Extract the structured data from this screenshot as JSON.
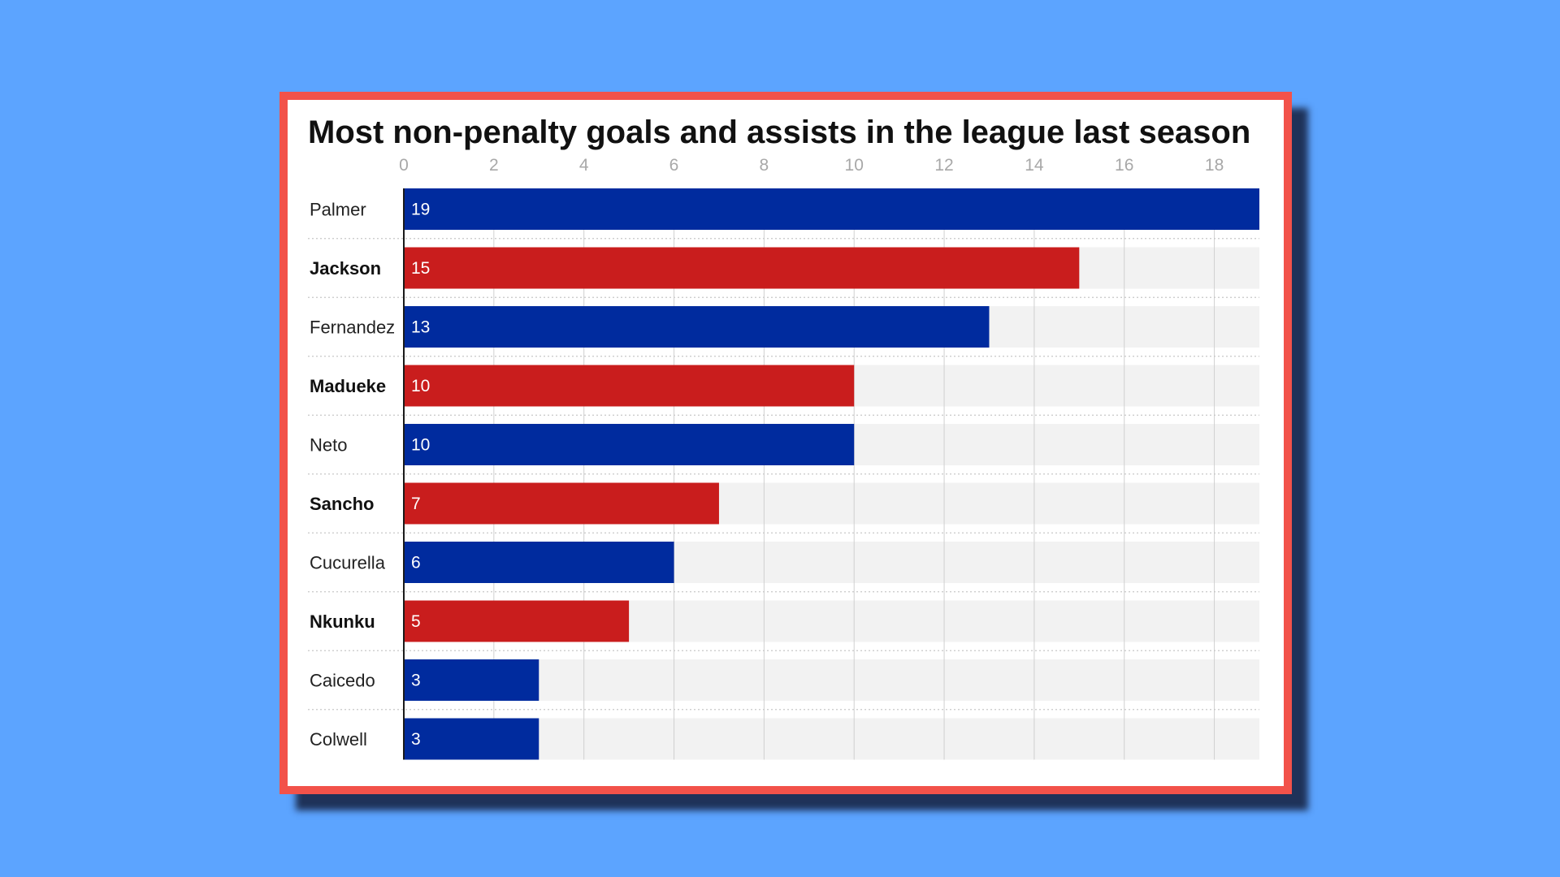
{
  "colors": {
    "background": "#5ca4ff",
    "card_border": "#f2524a",
    "blue_bar": "#002b9e",
    "red_bar": "#c91d1d",
    "track": "#f2f2f2",
    "gridline": "#d0d0d0"
  },
  "chart_data": {
    "type": "bar",
    "orientation": "horizontal",
    "title": "Most non-penalty goals and assists in the league last season",
    "xlabel": "",
    "ylabel": "",
    "xlim": [
      0,
      19
    ],
    "ticks": [
      0,
      2,
      4,
      6,
      8,
      10,
      12,
      14,
      16,
      18
    ],
    "grid": true,
    "categories": [
      "Palmer",
      "Jackson",
      "Fernandez",
      "Madueke",
      "Neto",
      "Sancho",
      "Cucurella",
      "Nkunku",
      "Caicedo",
      "Colwell"
    ],
    "values": [
      19,
      15,
      13,
      10,
      10,
      7,
      6,
      5,
      3,
      3
    ],
    "bar_colors": [
      "blue",
      "red",
      "blue",
      "red",
      "blue",
      "red",
      "blue",
      "red",
      "blue",
      "blue"
    ],
    "bold_labels": [
      false,
      true,
      false,
      true,
      false,
      true,
      false,
      true,
      false,
      false
    ]
  }
}
